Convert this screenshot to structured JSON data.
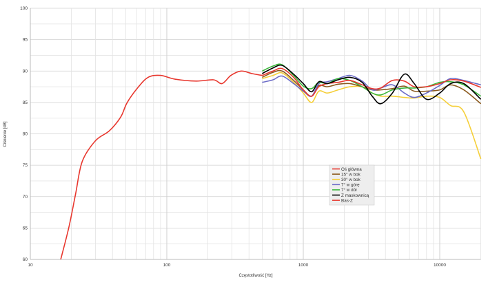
{
  "chart_data": {
    "type": "line",
    "title": "",
    "xlabel": "Częstotliwość [Hz]",
    "ylabel": "Ciśnienie [dB]",
    "x_scale": "log",
    "xlim": [
      10,
      20000
    ],
    "ylim": [
      60,
      100
    ],
    "x_ticks": [
      "10",
      "100",
      "1000",
      "10000"
    ],
    "y_ticks": [
      "60",
      "65",
      "70",
      "75",
      "80",
      "85",
      "90",
      "95",
      "100"
    ],
    "grid": true,
    "legend_position": "center-right",
    "series": [
      {
        "name": "Oś główna",
        "color": "#e8372e",
        "x": [
          500,
          600,
          700,
          850,
          1000,
          1150,
          1300,
          1500,
          1800,
          2200,
          2700,
          3200,
          3700,
          4500,
          5500,
          6500,
          8000,
          10000,
          12000,
          15000,
          20000
        ],
        "y": [
          89.3,
          90,
          90.4,
          89,
          87,
          86,
          87.5,
          88,
          88.2,
          88.5,
          87.8,
          87.2,
          87.3,
          88.5,
          88.4,
          87.5,
          87.5,
          88,
          88.6,
          88.4,
          87.4
        ]
      },
      {
        "name": "15° w bok",
        "color": "#8b5a1e",
        "x": [
          500,
          600,
          700,
          850,
          1000,
          1150,
          1300,
          1500,
          1800,
          2200,
          2700,
          3200,
          3700,
          4500,
          5500,
          6500,
          8000,
          10000,
          12000,
          15000,
          20000
        ],
        "y": [
          89,
          89.8,
          90,
          88.5,
          87,
          86,
          87.7,
          87.5,
          87.9,
          88,
          87.5,
          87,
          87,
          87.2,
          87.6,
          86.8,
          86.8,
          87,
          87.8,
          87,
          84.8
        ]
      },
      {
        "name": "30° w bok",
        "color": "#f5cf3a",
        "x": [
          500,
          600,
          700,
          850,
          1000,
          1150,
          1300,
          1500,
          1800,
          2200,
          2700,
          3200,
          3700,
          4500,
          5500,
          6500,
          8000,
          10000,
          12000,
          15000,
          20000
        ],
        "y": [
          88.8,
          89.3,
          89.7,
          88.2,
          86.5,
          85,
          86.8,
          86.5,
          87,
          87.5,
          87.5,
          86.5,
          86,
          86,
          85.8,
          85.7,
          86,
          85.8,
          84.5,
          83.5,
          76
        ]
      },
      {
        "name": "7° w górę",
        "color": "#6b6bc7",
        "x": [
          500,
          600,
          700,
          850,
          1000,
          1150,
          1300,
          1500,
          1800,
          2200,
          2700,
          3200,
          3700,
          4500,
          5500,
          6500,
          8000,
          10000,
          12000,
          15000,
          20000
        ],
        "y": [
          88.2,
          88.6,
          89.2,
          88,
          86.8,
          86,
          88,
          88.3,
          88.8,
          89.3,
          88.4,
          87,
          87.3,
          87.8,
          86.5,
          85.8,
          86.5,
          87.7,
          88.8,
          88.5,
          87.8
        ]
      },
      {
        "name": "7° w dół",
        "color": "#3cb83c",
        "x": [
          500,
          600,
          700,
          850,
          1000,
          1150,
          1300,
          1500,
          1800,
          2200,
          2700,
          3200,
          3700,
          4500,
          5500,
          6500,
          8000,
          10000,
          12000,
          15000,
          20000
        ],
        "y": [
          90,
          90.8,
          91,
          89.3,
          87.6,
          87.2,
          88.2,
          88,
          88.8,
          88.5,
          87.5,
          86.5,
          86.2,
          87,
          87.3,
          87.3,
          87.5,
          88.2,
          88.3,
          87.8,
          86
        ]
      },
      {
        "name": "Z maskownicą",
        "color": "#000000",
        "x": [
          500,
          600,
          700,
          850,
          1000,
          1150,
          1300,
          1500,
          1800,
          2200,
          2700,
          3200,
          3700,
          4500,
          5500,
          6500,
          8000,
          10000,
          12000,
          15000,
          20000
        ],
        "y": [
          89.6,
          90.5,
          90.9,
          89.5,
          88,
          86.7,
          88.3,
          88,
          88.6,
          89,
          88.2,
          86,
          84.8,
          86.5,
          89.5,
          88,
          85.5,
          86.5,
          88,
          88,
          85.5
        ]
      },
      {
        "name": "Bas-Z",
        "color": "#e8372e",
        "x": [
          16.7,
          19.2,
          21.5,
          24,
          30,
          38,
          46,
          51,
          61,
          73,
          90,
          115,
          164,
          220,
          254,
          295,
          350,
          420,
          500
        ],
        "y": [
          60,
          65.2,
          70.5,
          75.6,
          78.9,
          80.5,
          82.7,
          84.9,
          87.3,
          89,
          89.3,
          88.7,
          88.4,
          88.6,
          88,
          89.3,
          90,
          89.6,
          89.3
        ]
      }
    ]
  }
}
